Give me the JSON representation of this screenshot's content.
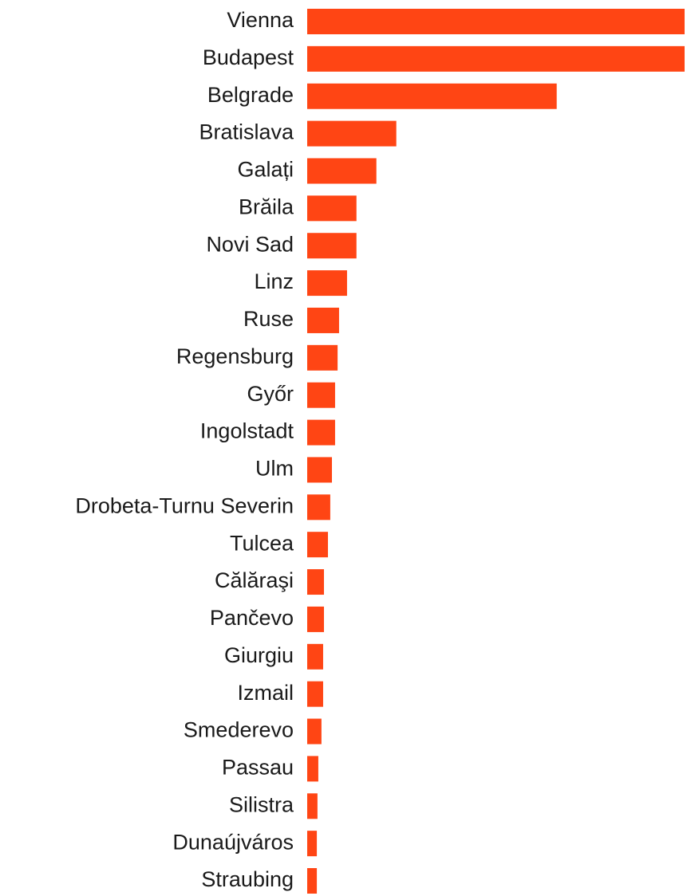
{
  "chart_data": {
    "type": "bar",
    "orientation": "horizontal",
    "color": "#ff4514",
    "categories": [
      "Vienna",
      "Budapest",
      "Belgrade",
      "Bratislava",
      "Galați",
      "Brăila",
      "Novi Sad",
      "Linz",
      "Ruse",
      "Regensburg",
      "Győr",
      "Ingolstadt",
      "Ulm",
      "Drobeta-Turnu Severin",
      "Tulcea",
      "Călăraşi",
      "Pančevo",
      "Giurgiu",
      "Izmail",
      "Smederevo",
      "Passau",
      "Silistra",
      "Dunaújváros",
      "Straubing"
    ],
    "values": [
      1800000,
      1800000,
      1190000,
      425000,
      330000,
      235000,
      235000,
      190000,
      152000,
      145000,
      133000,
      133000,
      118000,
      110000,
      99000,
      80000,
      80000,
      76000,
      76000,
      68000,
      53000,
      49000,
      46000,
      46000
    ],
    "xlim": [
      0,
      1800000
    ]
  }
}
